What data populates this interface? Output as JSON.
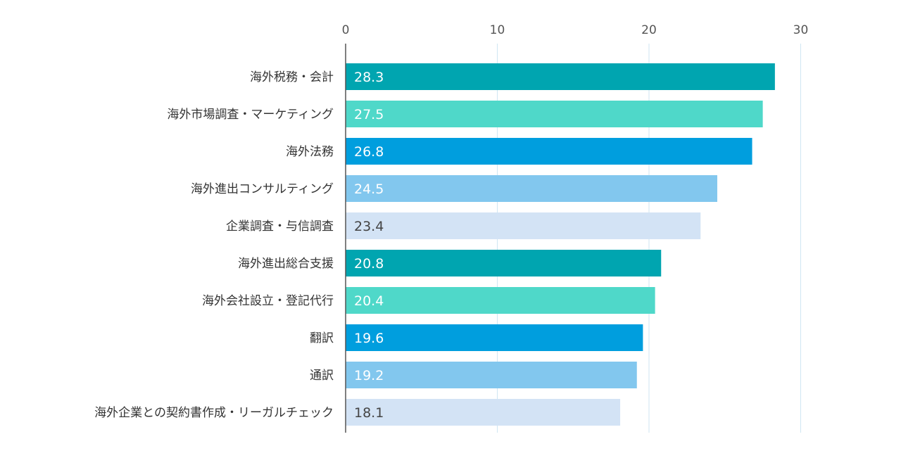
{
  "chart_data": {
    "type": "bar",
    "orientation": "horizontal",
    "title": "",
    "xlabel": "",
    "ylabel": "",
    "xlim": [
      0,
      30
    ],
    "x_ticks": [
      "0",
      "10",
      "20",
      "30"
    ],
    "grid": true,
    "categories": [
      "海外税務・会計",
      "海外市場調査・マーケティング",
      "海外法務",
      "海外進出コンサルティング",
      "企業調査・与信調査",
      "海外進出総合支援",
      "海外会社設立・登記代行",
      "翻訳",
      "通訳",
      "海外企業との契約書作成・リーガルチェック"
    ],
    "values": [
      28.3,
      27.5,
      26.8,
      24.5,
      23.4,
      20.8,
      20.4,
      19.6,
      19.2,
      18.1
    ],
    "value_labels": [
      "28.3",
      "27.5",
      "26.8",
      "24.5",
      "23.4",
      "20.8",
      "20.4",
      "19.6",
      "19.2",
      "18.1"
    ],
    "bar_colors": [
      "#00a5b0",
      "#4fd8c9",
      "#009ede",
      "#82c7ee",
      "#d3e3f5",
      "#00a5b0",
      "#4fd8c9",
      "#009ede",
      "#82c7ee",
      "#d3e3f5"
    ],
    "label_colors": [
      "#ffffff",
      "#ffffff",
      "#ffffff",
      "#ffffff",
      "#444444",
      "#ffffff",
      "#ffffff",
      "#ffffff",
      "#ffffff",
      "#444444"
    ],
    "axis_color": "#555555",
    "grid_color": "#cfe6f2"
  }
}
